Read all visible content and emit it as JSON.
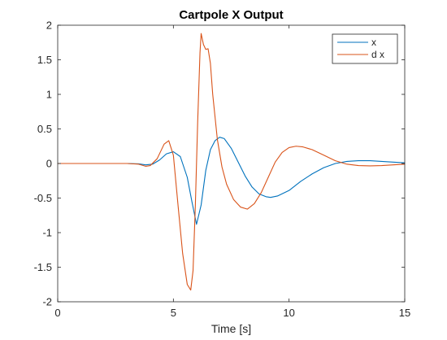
{
  "chart_data": {
    "type": "line",
    "title": "Cartpole X Output",
    "xlabel": "Time [s]",
    "ylabel": "",
    "xlim": [
      0,
      15
    ],
    "ylim": [
      -2,
      2
    ],
    "xticks": [
      0,
      5,
      10,
      15
    ],
    "yticks": [
      -2,
      -1.5,
      -1,
      -0.5,
      0,
      0.5,
      1,
      1.5,
      2
    ],
    "grid": false,
    "legend": "top-right",
    "series": [
      {
        "name": "x",
        "color": "#0072BD",
        "x": [
          0,
          1,
          2,
          3,
          3.5,
          3.8,
          4.1,
          4.4,
          4.7,
          5.0,
          5.3,
          5.6,
          5.8,
          6.0,
          6.2,
          6.4,
          6.6,
          6.8,
          7.0,
          7.2,
          7.5,
          7.8,
          8.1,
          8.4,
          8.7,
          9.0,
          9.2,
          9.5,
          10,
          10.5,
          11,
          11.5,
          12,
          12.5,
          13,
          13.5,
          14,
          14.5,
          15
        ],
        "y": [
          0,
          0,
          0,
          0,
          -0.005,
          -0.02,
          -0.01,
          0.05,
          0.14,
          0.17,
          0.1,
          -0.2,
          -0.55,
          -0.88,
          -0.6,
          -0.1,
          0.2,
          0.33,
          0.38,
          0.36,
          0.22,
          0.02,
          -0.18,
          -0.34,
          -0.44,
          -0.48,
          -0.49,
          -0.47,
          -0.39,
          -0.26,
          -0.15,
          -0.06,
          0,
          0.03,
          0.04,
          0.04,
          0.03,
          0.02,
          0.01
        ]
      },
      {
        "name": "d x",
        "color": "#D95319",
        "x": [
          0,
          1,
          2,
          3,
          3.5,
          3.8,
          4.0,
          4.3,
          4.6,
          4.8,
          5.0,
          5.2,
          5.4,
          5.6,
          5.75,
          5.85,
          5.95,
          6.05,
          6.15,
          6.2,
          6.3,
          6.4,
          6.5,
          6.6,
          6.7,
          6.9,
          7.1,
          7.3,
          7.6,
          7.9,
          8.2,
          8.5,
          8.8,
          9.1,
          9.4,
          9.7,
          10.0,
          10.3,
          10.6,
          11.0,
          11.5,
          12,
          12.5,
          13,
          13.5,
          14,
          14.5,
          15
        ],
        "y": [
          0,
          0,
          0,
          0,
          -0.01,
          -0.04,
          -0.03,
          0.07,
          0.28,
          0.33,
          0.12,
          -0.6,
          -1.3,
          -1.75,
          -1.83,
          -1.55,
          -0.6,
          0.6,
          1.6,
          1.88,
          1.72,
          1.65,
          1.66,
          1.45,
          1.0,
          0.35,
          -0.05,
          -0.3,
          -0.52,
          -0.63,
          -0.66,
          -0.58,
          -0.42,
          -0.2,
          0.02,
          0.16,
          0.23,
          0.25,
          0.24,
          0.2,
          0.12,
          0.04,
          -0.01,
          -0.03,
          -0.035,
          -0.03,
          -0.02,
          -0.01
        ]
      }
    ]
  }
}
